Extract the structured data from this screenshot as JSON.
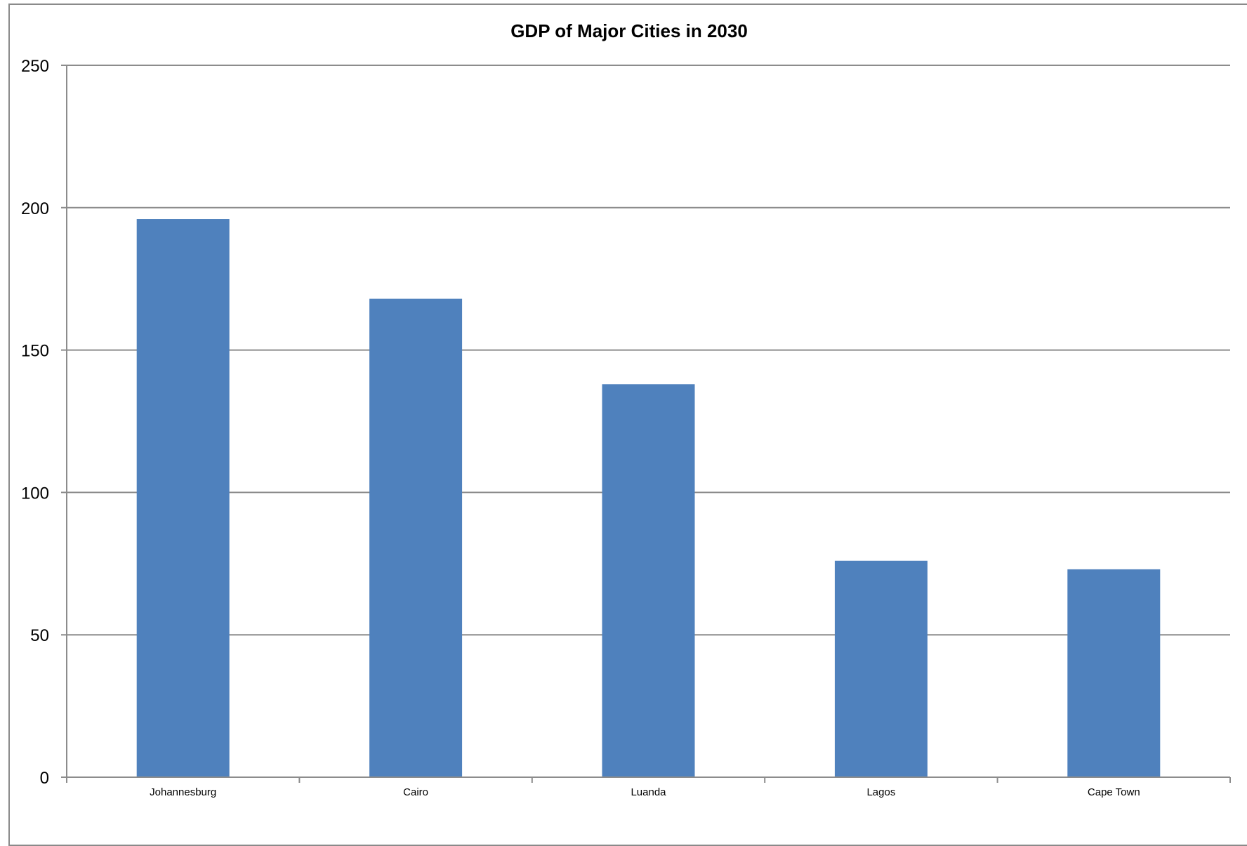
{
  "chart_data": {
    "type": "bar",
    "title": "GDP of Major Cities in 2030",
    "xlabel": "",
    "ylabel": "",
    "categories": [
      "Johannesburg",
      "Cairo",
      "Luanda",
      "Lagos",
      "Cape Town"
    ],
    "values": [
      196,
      168,
      138,
      76,
      73
    ],
    "ylim": [
      0,
      250
    ],
    "yticks": [
      0,
      50,
      100,
      150,
      200,
      250
    ],
    "grid": true,
    "legend": "none",
    "bar_color": "#4f81bd",
    "grid_color": "#8c8c8c"
  }
}
